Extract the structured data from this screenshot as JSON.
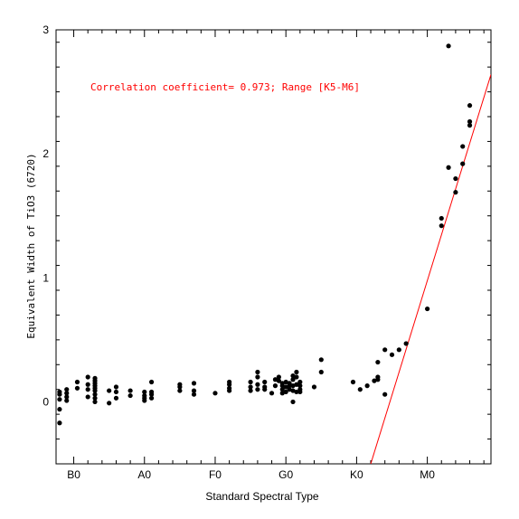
{
  "chart_data": {
    "type": "scatter",
    "xlabel": "Standard Spectral Type",
    "ylabel": "Equivalent Width of TiO3 (6720)",
    "annotation": "Correlation coefficient= 0.973; Range [K5-M6]",
    "xlim": [
      -2.5,
      59
    ],
    "ylim": [
      -0.5,
      3
    ],
    "x_ticks": [
      {
        "value": 0,
        "label": "B0"
      },
      {
        "value": 10,
        "label": "A0"
      },
      {
        "value": 20,
        "label": "F0"
      },
      {
        "value": 30,
        "label": "G0"
      },
      {
        "value": 40,
        "label": "K0"
      },
      {
        "value": 50,
        "label": "M0"
      }
    ],
    "y_ticks": [
      {
        "value": 0,
        "label": "0"
      },
      {
        "value": 1,
        "label": "1"
      },
      {
        "value": 2,
        "label": "2"
      },
      {
        "value": 3,
        "label": "3"
      }
    ],
    "fit_line": {
      "x": [
        42.0,
        59.0
      ],
      "y": [
        -0.5,
        2.64
      ],
      "color": "#ff0000"
    },
    "annotation_color": "#ff0000",
    "point_color": "#000000",
    "points": [
      [
        -2.0,
        0.08
      ],
      [
        -2.0,
        0.06
      ],
      [
        -2.0,
        0.02
      ],
      [
        -2.0,
        -0.06
      ],
      [
        -2.0,
        -0.17
      ],
      [
        -1.0,
        0.1
      ],
      [
        -1.0,
        0.07
      ],
      [
        -1.0,
        0.04
      ],
      [
        -1.0,
        0.01
      ],
      [
        0.5,
        0.16
      ],
      [
        0.5,
        0.11
      ],
      [
        2.0,
        0.2
      ],
      [
        2.0,
        0.14
      ],
      [
        2.0,
        0.1
      ],
      [
        2.0,
        0.04
      ],
      [
        3.0,
        0.19
      ],
      [
        3.0,
        0.17
      ],
      [
        3.0,
        0.15
      ],
      [
        3.0,
        0.13
      ],
      [
        3.0,
        0.11
      ],
      [
        3.0,
        0.09
      ],
      [
        3.0,
        0.06
      ],
      [
        3.0,
        0.03
      ],
      [
        3.0,
        0.0
      ],
      [
        5.0,
        0.09
      ],
      [
        5.0,
        -0.01
      ],
      [
        6.0,
        0.12
      ],
      [
        6.0,
        0.08
      ],
      [
        6.0,
        0.03
      ],
      [
        8.0,
        0.09
      ],
      [
        8.0,
        0.05
      ],
      [
        10.0,
        0.08
      ],
      [
        10.0,
        0.05
      ],
      [
        10.0,
        0.03
      ],
      [
        10.0,
        0.01
      ],
      [
        11.0,
        0.16
      ],
      [
        11.0,
        0.08
      ],
      [
        11.0,
        0.06
      ],
      [
        11.0,
        0.03
      ],
      [
        15.0,
        0.14
      ],
      [
        15.0,
        0.12
      ],
      [
        15.0,
        0.09
      ],
      [
        17.0,
        0.15
      ],
      [
        17.0,
        0.09
      ],
      [
        17.0,
        0.06
      ],
      [
        20.0,
        0.07
      ],
      [
        22.0,
        0.16
      ],
      [
        22.0,
        0.14
      ],
      [
        22.0,
        0.11
      ],
      [
        22.0,
        0.09
      ],
      [
        25.0,
        0.16
      ],
      [
        25.0,
        0.12
      ],
      [
        25.0,
        0.09
      ],
      [
        26.0,
        0.24
      ],
      [
        26.0,
        0.2
      ],
      [
        26.0,
        0.14
      ],
      [
        26.0,
        0.1
      ],
      [
        27.0,
        0.16
      ],
      [
        27.0,
        0.12
      ],
      [
        27.0,
        0.1
      ],
      [
        28.0,
        0.07
      ],
      [
        28.5,
        0.18
      ],
      [
        28.5,
        0.13
      ],
      [
        29.0,
        0.2
      ],
      [
        29.0,
        0.17
      ],
      [
        29.5,
        0.15
      ],
      [
        29.5,
        0.13
      ],
      [
        29.5,
        0.1
      ],
      [
        29.5,
        0.07
      ],
      [
        30.0,
        0.16
      ],
      [
        30.0,
        0.12
      ],
      [
        30.0,
        0.08
      ],
      [
        30.5,
        0.15
      ],
      [
        30.5,
        0.13
      ],
      [
        30.5,
        0.1
      ],
      [
        31.0,
        0.21
      ],
      [
        31.0,
        0.18
      ],
      [
        31.0,
        0.13
      ],
      [
        31.0,
        0.09
      ],
      [
        31.0,
        0.0
      ],
      [
        31.5,
        0.24
      ],
      [
        31.5,
        0.2
      ],
      [
        31.5,
        0.14
      ],
      [
        31.5,
        0.08
      ],
      [
        32.0,
        0.16
      ],
      [
        32.0,
        0.13
      ],
      [
        32.0,
        0.1
      ],
      [
        32.0,
        0.08
      ],
      [
        34.0,
        0.12
      ],
      [
        35.0,
        0.34
      ],
      [
        35.0,
        0.24
      ],
      [
        39.5,
        0.16
      ],
      [
        40.5,
        0.1
      ],
      [
        41.5,
        0.13
      ],
      [
        42.5,
        0.17
      ],
      [
        43.0,
        0.32
      ],
      [
        43.0,
        0.2
      ],
      [
        43.0,
        0.18
      ],
      [
        44.0,
        0.42
      ],
      [
        44.0,
        0.06
      ],
      [
        45.0,
        0.38
      ],
      [
        46.0,
        0.42
      ],
      [
        47.0,
        0.47
      ],
      [
        50.0,
        0.75
      ],
      [
        52.0,
        1.48
      ],
      [
        52.0,
        1.42
      ],
      [
        53.0,
        1.89
      ],
      [
        53.0,
        2.87
      ],
      [
        54.0,
        1.8
      ],
      [
        54.0,
        1.69
      ],
      [
        55.0,
        2.06
      ],
      [
        55.0,
        1.92
      ],
      [
        56.0,
        2.39
      ],
      [
        56.0,
        2.26
      ],
      [
        56.0,
        2.23
      ]
    ]
  }
}
